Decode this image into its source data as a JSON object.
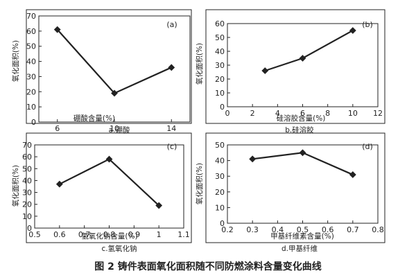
{
  "figure_caption": "图 2  铸件表面氧化面积随不同防燃涂料含量变化曲线",
  "chart_data": [
    {
      "type": "line",
      "panel_tag": "(a)",
      "caption": "a.硼酸",
      "xlabel": "硼酸含量(%)",
      "ylabel": "氧化面积(%)",
      "x_ticks": [
        6,
        10,
        14
      ],
      "y_ticks": [
        0,
        10,
        20,
        30,
        40,
        50,
        60,
        70
      ],
      "xlim": [
        4.7,
        15.3
      ],
      "ylim": [
        0,
        70
      ],
      "series": [
        {
          "x": [
            6,
            10,
            14
          ],
          "y": [
            61,
            19,
            36
          ]
        }
      ]
    },
    {
      "type": "line",
      "panel_tag": "(b)",
      "caption": "b.硅溶胶",
      "xlabel": "硅溶胶含量(%)",
      "ylabel": "氧化面积(%)",
      "x_ticks": [
        0,
        2,
        4,
        6,
        8,
        10,
        12
      ],
      "y_ticks": [
        0,
        10,
        20,
        30,
        40,
        50,
        60
      ],
      "xlim": [
        0,
        12
      ],
      "ylim": [
        0,
        60
      ],
      "series": [
        {
          "x": [
            3,
            6,
            10
          ],
          "y": [
            26,
            35,
            55
          ]
        }
      ]
    },
    {
      "type": "line",
      "panel_tag": "(c)",
      "caption": "c.氢氧化钠",
      "xlabel": "氢氧化钠含量(%)",
      "ylabel": "氧化面积(%)",
      "x_ticks": [
        0.5,
        0.6,
        0.7,
        0.8,
        0.9,
        1,
        1.1
      ],
      "y_ticks": [
        0,
        10,
        20,
        30,
        40,
        50,
        60,
        70
      ],
      "xlim": [
        0.5,
        1.1
      ],
      "ylim": [
        0,
        70
      ],
      "series": [
        {
          "x": [
            0.6,
            0.8,
            1.0
          ],
          "y": [
            37,
            58,
            19
          ]
        }
      ]
    },
    {
      "type": "line",
      "panel_tag": "(d)",
      "caption": "d.甲基纤维",
      "xlabel": "甲基纤维素含量(%)",
      "ylabel": "氧化面积(%)",
      "x_ticks": [
        0.2,
        0.3,
        0.4,
        0.5,
        0.6,
        0.7,
        0.8
      ],
      "y_ticks": [
        0,
        10,
        20,
        30,
        40,
        50
      ],
      "xlim": [
        0.2,
        0.8
      ],
      "ylim": [
        0,
        50
      ],
      "series": [
        {
          "x": [
            0.3,
            0.5,
            0.7
          ],
          "y": [
            41,
            45,
            31
          ]
        }
      ]
    }
  ]
}
